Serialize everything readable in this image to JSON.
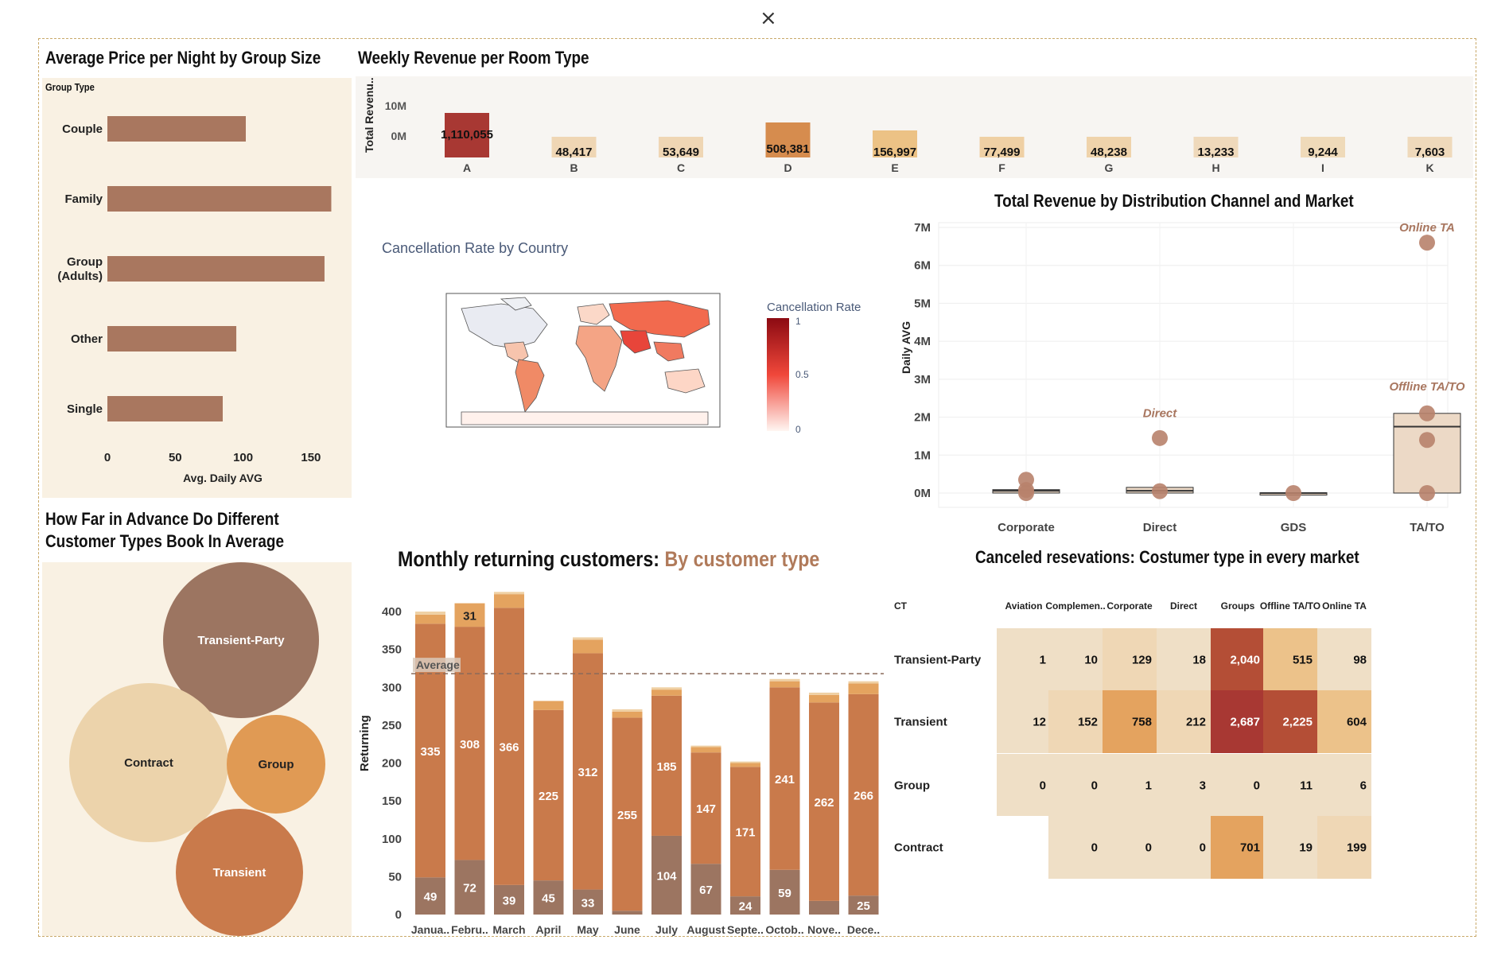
{
  "window": {
    "close_glyph": "×"
  },
  "colors": {
    "panel_bg": "#f9f1e3",
    "bar_brown": "#a9775f",
    "orange_main": "#c97a4b",
    "orange_light": "#e4a35f",
    "brown_dark": "#9c7561",
    "red_dark": "#a83833"
  },
  "group_size_chart": {
    "title": "Average Price per Night by Group Size",
    "legend_header": "Group Type",
    "chart_data": {
      "type": "bar",
      "orientation": "horizontal",
      "categories": [
        "Couple",
        "Family",
        "Group (Adults)",
        "Other",
        "Single"
      ],
      "category_lines": [
        [
          "Couple"
        ],
        [
          "Family"
        ],
        [
          "Group",
          "(Adults)"
        ],
        [
          "Other"
        ],
        [
          "Single"
        ]
      ],
      "values": [
        102,
        165,
        160,
        95,
        85
      ],
      "xlabel": "Avg. Daily AVG",
      "xticks": [
        "0",
        "50",
        "100",
        "150"
      ],
      "xlim": [
        0,
        170
      ],
      "color": "#a9775f"
    }
  },
  "weekly_revenue_chart": {
    "title": "Weekly Revenue per Room Type",
    "ylabel": "Total Revenu..",
    "chart_data": {
      "type": "bar",
      "categories": [
        "A",
        "B",
        "C",
        "D",
        "E",
        "F",
        "G",
        "H",
        "I",
        "K"
      ],
      "values": [
        1110055,
        48417,
        53649,
        508381,
        156997,
        77499,
        48238,
        13233,
        9244,
        7603
      ],
      "value_labels": [
        "1,110,055",
        "48,417",
        "53,649",
        "508,381",
        "156,997",
        "77,499",
        "48,238",
        "13,233",
        "9,244",
        "7,603"
      ],
      "yticks": [
        "10M",
        "0M"
      ],
      "colors": [
        "#a83833",
        "#efd6b4",
        "#efd6b4",
        "#d68c4e",
        "#ecc285",
        "#efd0a4",
        "#efd3ab",
        "#efd9bb",
        "#efdab9",
        "#efd9bb"
      ]
    }
  },
  "map_chart": {
    "title": "Cancellation Rate by Country",
    "colorbar_title": "Cancellation Rate",
    "colorbar_ticks": [
      "1",
      "0.5",
      "0"
    ],
    "chart_data": {
      "type": "choropleth",
      "color_range": [
        0,
        1
      ],
      "colors": [
        "#fff2ee",
        "#a50f15"
      ]
    }
  },
  "channel_chart": {
    "title": "Total Revenue by Distribution Channel and Market",
    "ylabel": "Daily AVG",
    "yticks": [
      "7M",
      "6M",
      "5M",
      "4M",
      "3M",
      "2M",
      "1M",
      "0M"
    ],
    "chart_data": {
      "type": "scatter",
      "categories": [
        "Corporate",
        "Direct",
        "GDS",
        "TA/TO"
      ],
      "ylim": [
        0,
        7000000
      ],
      "points": [
        {
          "category": "Corporate",
          "values": [
            350000,
            80000,
            0
          ]
        },
        {
          "category": "Direct",
          "values": [
            1450000,
            50000
          ]
        },
        {
          "category": "GDS",
          "values": [
            0
          ]
        },
        {
          "category": "TA/TO",
          "values": [
            6600000,
            2100000,
            1400000,
            0
          ]
        }
      ],
      "annotations": [
        {
          "category": "Direct",
          "text": "Direct",
          "value": 2000000
        },
        {
          "category": "TA/TO",
          "text": "Online TA",
          "value": 6900000
        },
        {
          "category": "TA/TO",
          "text": "Offline TA/TO",
          "value": 2700000
        }
      ],
      "boxes": [
        {
          "category": "Corporate",
          "q1": 0,
          "median": 60000,
          "q3": 90000
        },
        {
          "category": "Direct",
          "q1": 0,
          "median": 60000,
          "q3": 150000
        },
        {
          "category": "GDS",
          "q1": 0,
          "median": 0,
          "q3": 10000
        },
        {
          "category": "TA/TO",
          "q1": 0,
          "median": 1750000,
          "q3": 2100000
        }
      ],
      "point_color": "#b8826b"
    }
  },
  "advance_chart": {
    "title_line1": "How Far in Advance Do Different",
    "title_line2": "Customer Types Book In Average",
    "chart_data": {
      "type": "bubble",
      "items": [
        {
          "label": "Transient-Party",
          "size": 80,
          "color": "#9c7561"
        },
        {
          "label": "Contract",
          "size": 82,
          "color": "#ecd3ab"
        },
        {
          "label": "Group",
          "size": 50,
          "color": "#e09a54"
        },
        {
          "label": "Transient",
          "size": 66,
          "color": "#c97a4b"
        }
      ]
    }
  },
  "monthly_chart": {
    "title_main": "Monthly returning customers:",
    "title_accent": "By customer type",
    "ylabel": "Returning",
    "average_label": "Average",
    "average_value": 318,
    "yticks": [
      "400",
      "350",
      "300",
      "250",
      "200",
      "150",
      "100",
      "50",
      "0"
    ],
    "chart_data": {
      "type": "bar",
      "stacked": true,
      "ylim": [
        0,
        420
      ],
      "categories": [
        "Janua..",
        "Febru..",
        "March",
        "April",
        "May",
        "June",
        "July",
        "August",
        "Septe..",
        "Octob..",
        "Nove..",
        "Dece.."
      ],
      "series": [
        {
          "values": [
            49,
            72,
            39,
            45,
            33,
            5,
            104,
            67,
            24,
            59,
            18,
            25
          ],
          "labels": [
            "49",
            "72",
            "39",
            "45",
            "33",
            "",
            "104",
            "67",
            "24",
            "59",
            "",
            "25"
          ],
          "color": "#9c7561"
        },
        {
          "values": [
            335,
            308,
            366,
            225,
            312,
            255,
            185,
            147,
            171,
            241,
            262,
            266
          ],
          "labels": [
            "335",
            "308",
            "366",
            "225",
            "312",
            "255",
            "185",
            "147",
            "171",
            "241",
            "262",
            "266"
          ],
          "color": "#c97a4b"
        },
        {
          "values": [
            12,
            31,
            18,
            12,
            18,
            8,
            8,
            7,
            5,
            8,
            10,
            14
          ],
          "labels": [
            "",
            "31",
            "",
            "",
            "",
            "",
            "",
            "",
            "",
            "",
            "",
            ""
          ],
          "color": "#e4a35f"
        },
        {
          "values": [
            4,
            0,
            3,
            0,
            3,
            3,
            3,
            2,
            2,
            3,
            3,
            3
          ],
          "labels": [
            "",
            "",
            "",
            "",
            "",
            "",
            "",
            "",
            "",
            "",
            "",
            ""
          ],
          "color": "#efd0a4"
        }
      ]
    }
  },
  "canceled_chart": {
    "title": "Canceled resevations: Costumer type in every market",
    "row_header": "CT",
    "chart_data": {
      "type": "heatmap",
      "columns": [
        "Aviation",
        "Complemen..",
        "Corporate",
        "Direct",
        "Groups",
        "Offline TA/TO",
        "Online TA"
      ],
      "rows": [
        "Transient-Party",
        "Transient",
        "Group",
        "Contract"
      ],
      "values": [
        [
          1,
          10,
          129,
          18,
          2040,
          515,
          98
        ],
        [
          12,
          152,
          758,
          212,
          2687,
          2225,
          604
        ],
        [
          0,
          0,
          1,
          3,
          0,
          11,
          6
        ],
        [
          null,
          0,
          0,
          0,
          701,
          19,
          199
        ]
      ],
      "labels": [
        [
          "1",
          "10",
          "129",
          "18",
          "2,040",
          "515",
          "98"
        ],
        [
          "12",
          "152",
          "758",
          "212",
          "2,687",
          "2,225",
          "604"
        ],
        [
          "0",
          "0",
          "1",
          "3",
          "0",
          "11",
          "6"
        ],
        [
          "",
          "0",
          "0",
          "0",
          "701",
          "19",
          "199"
        ]
      ]
    }
  }
}
